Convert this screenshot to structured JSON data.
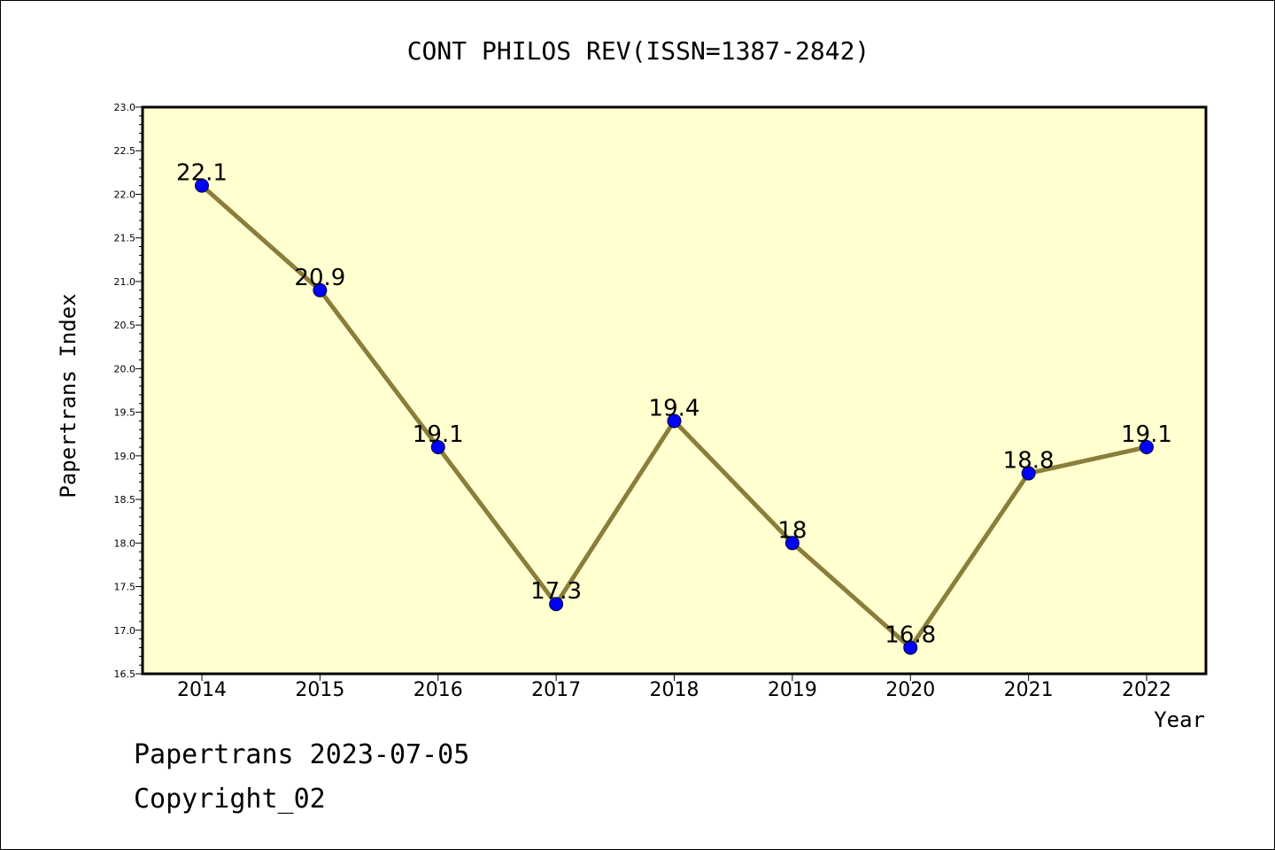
{
  "footer": {
    "line1": "Papertrans 2023-07-05",
    "line2": "Copyright_02"
  },
  "colors": {
    "plot_background": "#ffffd0",
    "line": "#8b7d3a",
    "marker": "#0000ff"
  },
  "chart_data": {
    "type": "line",
    "title": "CONT PHILOS REV(ISSN=1387-2842)",
    "xlabel": "Year",
    "ylabel": "Papertrans Index",
    "categories": [
      "2014",
      "2015",
      "2016",
      "2017",
      "2018",
      "2019",
      "2020",
      "2021",
      "2022"
    ],
    "series": [
      {
        "values": [
          22.1,
          20.9,
          19.1,
          17.3,
          19.4,
          18.0,
          16.8,
          18.8,
          19.1
        ],
        "labels": [
          "22.1",
          "20.9",
          "19.1",
          "17.3",
          "19.4",
          "18",
          "16.8",
          "18.8",
          "19.1"
        ]
      }
    ],
    "ylim": [
      16.5,
      23.0
    ],
    "yticks": [
      "16.5",
      "17.0",
      "17.5",
      "18.0",
      "18.5",
      "19.0",
      "19.5",
      "20.0",
      "20.5",
      "21.0",
      "21.5",
      "22.0",
      "22.5",
      "23.0"
    ],
    "grid": false,
    "legend": "none"
  }
}
